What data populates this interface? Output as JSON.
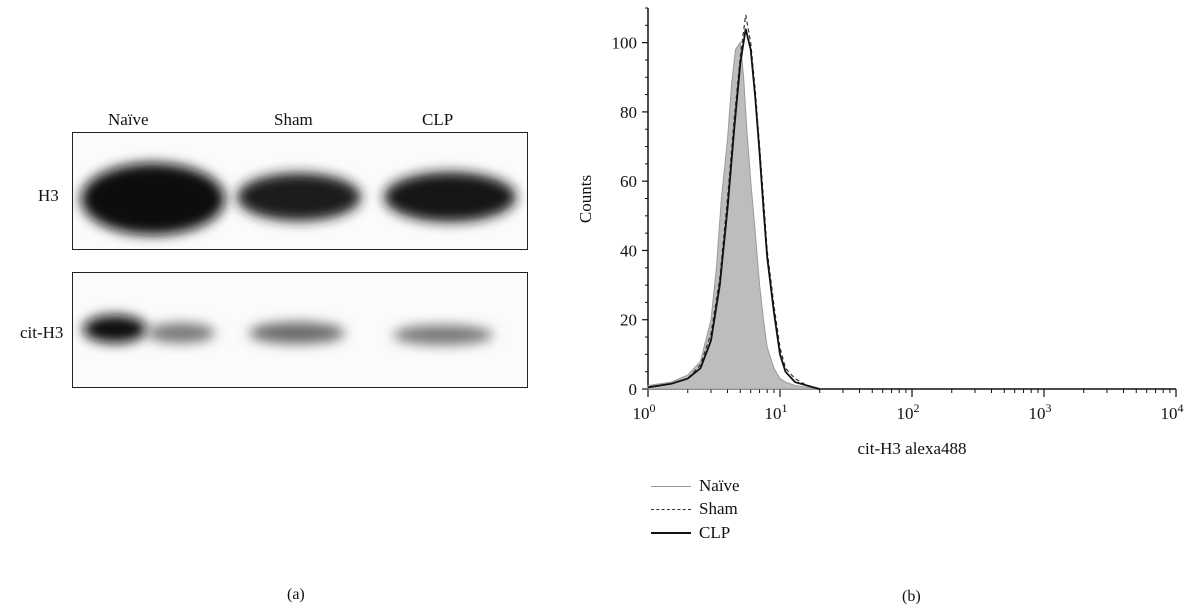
{
  "western_blot": {
    "lanes": [
      "Naïve",
      "Sham",
      "CLP"
    ],
    "rows": [
      "H3",
      "cit-H3"
    ],
    "panel_label": "(a)"
  },
  "chart_data": {
    "type": "area",
    "panel_label": "(b)",
    "xlabel": "cit-H3 alexa488",
    "ylabel": "Counts",
    "x_scale": "log",
    "xlim": [
      1,
      10000
    ],
    "ylim": [
      0,
      110
    ],
    "x_ticks": [
      {
        "value": 1,
        "base": "10",
        "exp": "0"
      },
      {
        "value": 10,
        "base": "10",
        "exp": "1"
      },
      {
        "value": 100,
        "base": "10",
        "exp": "2"
      },
      {
        "value": 1000,
        "base": "10",
        "exp": "3"
      },
      {
        "value": 10000,
        "base": "10",
        "exp": "4"
      }
    ],
    "y_ticks": [
      0,
      20,
      40,
      60,
      80,
      100
    ],
    "legend_position": "bottom-left",
    "series": [
      {
        "name": "Naïve",
        "style": "filled-gray",
        "color": "#a8a8a8",
        "x": [
          1,
          1.5,
          2,
          2.5,
          3,
          3.3,
          3.6,
          4,
          4.3,
          4.6,
          5,
          5.3,
          5.6,
          6,
          6.5,
          7,
          7.5,
          8,
          9,
          10,
          11,
          13,
          16,
          20
        ],
        "y": [
          1,
          2,
          4,
          8,
          20,
          35,
          55,
          72,
          88,
          98,
          100,
          90,
          75,
          60,
          45,
          30,
          20,
          12,
          6,
          3,
          2,
          1,
          0.5,
          0
        ]
      },
      {
        "name": "Sham",
        "style": "dashed",
        "color": "#333333",
        "x": [
          1,
          1.5,
          2,
          2.5,
          3,
          3.5,
          4,
          4.5,
          5,
          5.5,
          6,
          6.5,
          7,
          7.5,
          8,
          9,
          10,
          11,
          13,
          16,
          20
        ],
        "y": [
          0.5,
          1.5,
          3,
          7,
          16,
          32,
          55,
          78,
          96,
          108,
          100,
          86,
          70,
          55,
          40,
          24,
          12,
          6,
          3,
          1,
          0
        ]
      },
      {
        "name": "CLP",
        "style": "solid",
        "color": "#111111",
        "x": [
          1,
          1.5,
          2,
          2.5,
          3,
          3.5,
          4,
          4.5,
          5,
          5.5,
          6,
          6.5,
          7,
          7.5,
          8,
          9,
          10,
          11,
          13,
          16,
          20
        ],
        "y": [
          0.5,
          1.5,
          3,
          6,
          14,
          30,
          52,
          75,
          94,
          104,
          98,
          84,
          68,
          52,
          38,
          22,
          10,
          5,
          2,
          1,
          0
        ]
      }
    ]
  }
}
